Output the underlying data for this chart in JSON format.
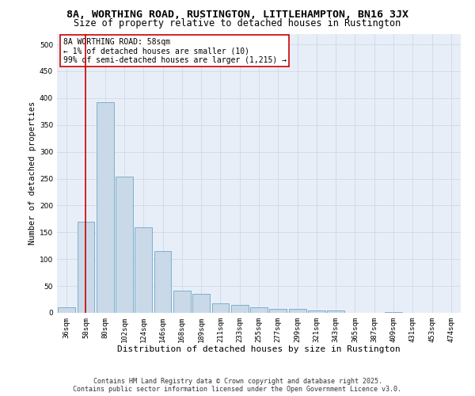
{
  "title": "8A, WORTHING ROAD, RUSTINGTON, LITTLEHAMPTON, BN16 3JX",
  "subtitle": "Size of property relative to detached houses in Rustington",
  "xlabel": "Distribution of detached houses by size in Rustington",
  "ylabel": "Number of detached properties",
  "categories": [
    "36sqm",
    "58sqm",
    "80sqm",
    "102sqm",
    "124sqm",
    "146sqm",
    "168sqm",
    "189sqm",
    "211sqm",
    "233sqm",
    "255sqm",
    "277sqm",
    "299sqm",
    "321sqm",
    "343sqm",
    "365sqm",
    "387sqm",
    "409sqm",
    "431sqm",
    "453sqm",
    "474sqm"
  ],
  "values": [
    10,
    170,
    393,
    253,
    160,
    115,
    42,
    36,
    18,
    15,
    11,
    8,
    7,
    5,
    4,
    0,
    0,
    2,
    0,
    0,
    0
  ],
  "bar_color": "#c9d9e8",
  "bar_edge_color": "#6fa8c8",
  "highlight_index": 1,
  "highlight_line_color": "#cc0000",
  "annotation_line1": "8A WORTHING ROAD: 58sqm",
  "annotation_line2": "← 1% of detached houses are smaller (10)",
  "annotation_line3": "99% of semi-detached houses are larger (1,215) →",
  "annotation_box_color": "#ffffff",
  "annotation_box_edge_color": "#cc0000",
  "ylim": [
    0,
    520
  ],
  "yticks": [
    0,
    50,
    100,
    150,
    200,
    250,
    300,
    350,
    400,
    450,
    500
  ],
  "grid_color": "#d0d8e8",
  "background_color": "#e8eef8",
  "footer_line1": "Contains HM Land Registry data © Crown copyright and database right 2025.",
  "footer_line2": "Contains public sector information licensed under the Open Government Licence v3.0.",
  "title_fontsize": 9.5,
  "subtitle_fontsize": 8.5,
  "xlabel_fontsize": 8,
  "ylabel_fontsize": 7.5,
  "tick_fontsize": 6.5,
  "annotation_fontsize": 7,
  "footer_fontsize": 6
}
